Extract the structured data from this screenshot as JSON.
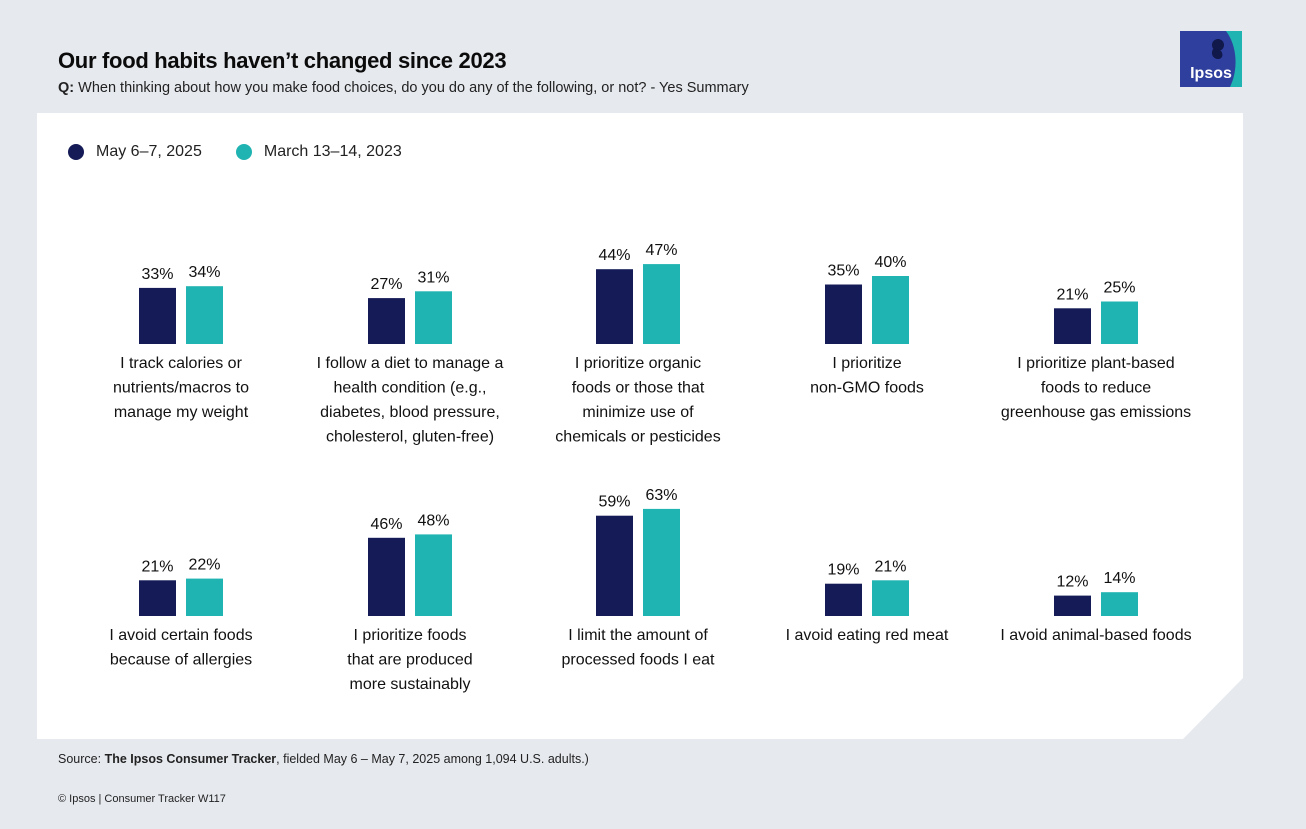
{
  "header": {
    "title": "Our food habits haven’t changed since 2023",
    "question_prefix": "Q:",
    "question_text": "When thinking about how you make food choices, do you do any of the following, or not? - Yes Summary"
  },
  "logo": {
    "text": "Ipsos",
    "colors": {
      "bg": "#2f3f9e",
      "accent": "#1fb3b1"
    }
  },
  "colors": {
    "series_2025": "#141b57",
    "series_2023": "#1fb3b1",
    "background": "#e6e9ee",
    "panel": "#ffffff"
  },
  "chart_data": {
    "type": "bar",
    "title": "Our food habits haven’t changed since 2023",
    "unit": "%",
    "series": [
      {
        "name": "May 6–7, 2025",
        "color": "#141b57"
      },
      {
        "name": "March 13–14, 2023",
        "color": "#1fb3b1"
      }
    ],
    "categories": [
      {
        "label": [
          "I track calories or",
          "nutrients/macros to",
          "manage my weight"
        ],
        "values": [
          33,
          34
        ]
      },
      {
        "label": [
          "I follow a diet to manage a",
          "health condition (e.g.,",
          "diabetes, blood pressure,",
          "cholesterol, gluten-free)"
        ],
        "values": [
          27,
          31
        ]
      },
      {
        "label": [
          "I prioritize organic",
          "foods or those that",
          "minimize use of",
          "chemicals or pesticides"
        ],
        "values": [
          44,
          47
        ]
      },
      {
        "label": [
          "I prioritize",
          "non-GMO foods"
        ],
        "values": [
          35,
          40
        ]
      },
      {
        "label": [
          "I prioritize plant-based",
          "foods to reduce",
          "greenhouse gas emissions"
        ],
        "values": [
          21,
          25
        ]
      },
      {
        "label": [
          "I avoid certain foods",
          "because of allergies"
        ],
        "values": [
          21,
          22
        ]
      },
      {
        "label": [
          "I prioritize foods",
          "that are produced",
          "more sustainably"
        ],
        "values": [
          46,
          48
        ]
      },
      {
        "label": [
          "I limit the amount of",
          "processed foods I eat"
        ],
        "values": [
          59,
          63
        ]
      },
      {
        "label": [
          "I avoid eating red meat"
        ],
        "values": [
          19,
          21
        ]
      },
      {
        "label": [
          "I avoid animal-based foods"
        ],
        "values": [
          12,
          14
        ]
      }
    ],
    "grid": false,
    "legend_position": "top-left"
  },
  "footer": {
    "source_prefix": "Source: ",
    "source_bold": "The Ipsos Consumer Tracker",
    "source_rest": ", fielded May 6 – May 7, 2025 among 1,094 U.S. adults.)",
    "copyright": "© Ipsos | Consumer Tracker W117"
  }
}
